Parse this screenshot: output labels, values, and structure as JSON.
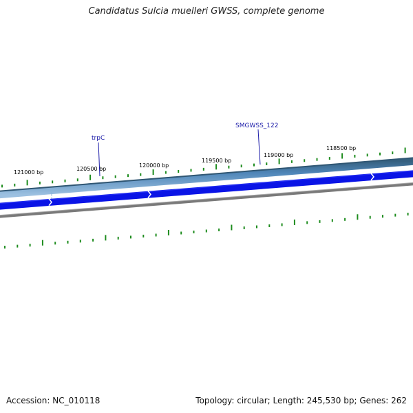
{
  "title": "Candidatus Sulcia muelleri GWSS, complete genome",
  "footer": {
    "accession": "Accession: NC_010118",
    "summary": "Topology: circular; Length: 245,530 bp; Genes: 262"
  },
  "ruler": {
    "labels": [
      "121000 bp",
      "120500 bp",
      "120000 bp",
      "119500 bp",
      "119000 bp",
      "118500 bp"
    ]
  },
  "genes": [
    {
      "name": "trpC"
    },
    {
      "name": "SMGWSS_122"
    }
  ],
  "colors": {
    "outer_track": "#4f86b8",
    "outer_track_edge": "#35607f",
    "cds_track": "#0a14e6",
    "inner_ring": "#7a7a7a",
    "ticks": "#1e8c1e",
    "gene_label": "#1a1aa8"
  }
}
